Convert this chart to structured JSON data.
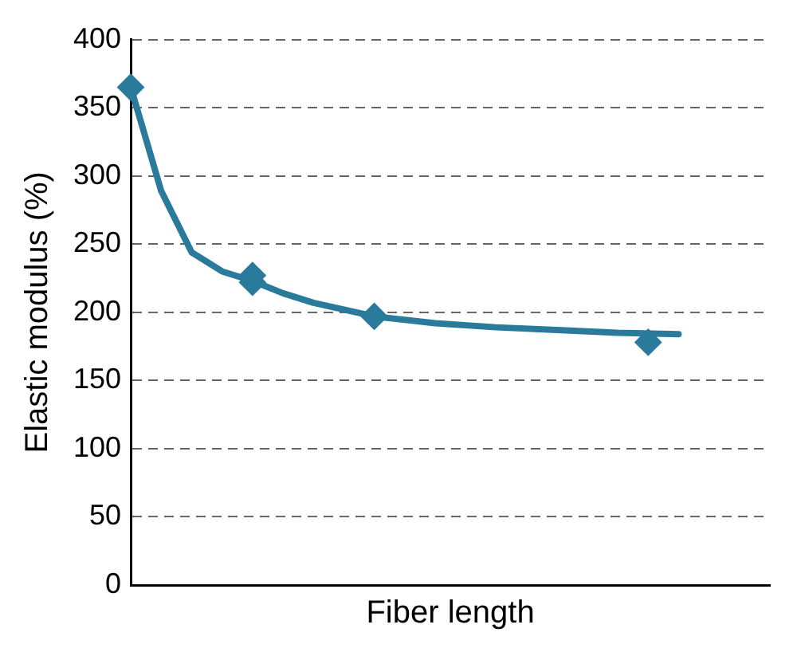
{
  "chart_data": {
    "type": "scatter",
    "xlabel": "Fiber length",
    "ylabel": "Elastic modulus (%)",
    "categories": [
      null,
      null,
      null,
      null,
      null,
      null,
      null,
      null,
      null,
      null,
      null,
      null,
      null,
      null,
      null,
      null,
      null,
      null,
      null,
      null,
      null,
      null
    ],
    "ylim": [
      0,
      400
    ],
    "yticks": [
      0,
      50,
      100,
      150,
      200,
      250,
      300,
      350,
      400
    ],
    "tick_labels": "y",
    "grid": "y",
    "series": [
      {
        "type": "line",
        "color": "#2a7b9b",
        "marker": "none",
        "line_style": "solid",
        "values": [
          365,
          289,
          244,
          230,
          223,
          214,
          207,
          202,
          197,
          null,
          192,
          null,
          189,
          null,
          187,
          null,
          185,
          null,
          184,
          null,
          null,
          null
        ]
      },
      {
        "color": "#2a7b9b",
        "marker": "diamond",
        "values": [
          365,
          null,
          null,
          null,
          222,
          null,
          null,
          null,
          197,
          null,
          null,
          null,
          null,
          null,
          null,
          null,
          null,
          178,
          null,
          null,
          null,
          null
        ]
      },
      {
        "color": "#2a7b9b",
        "marker": "diamond",
        "values": [
          null,
          null,
          null,
          null,
          227,
          null,
          null,
          null,
          null,
          null,
          null,
          null,
          null,
          null,
          null,
          null,
          null,
          null,
          null,
          null,
          null,
          null
        ]
      }
    ]
  }
}
